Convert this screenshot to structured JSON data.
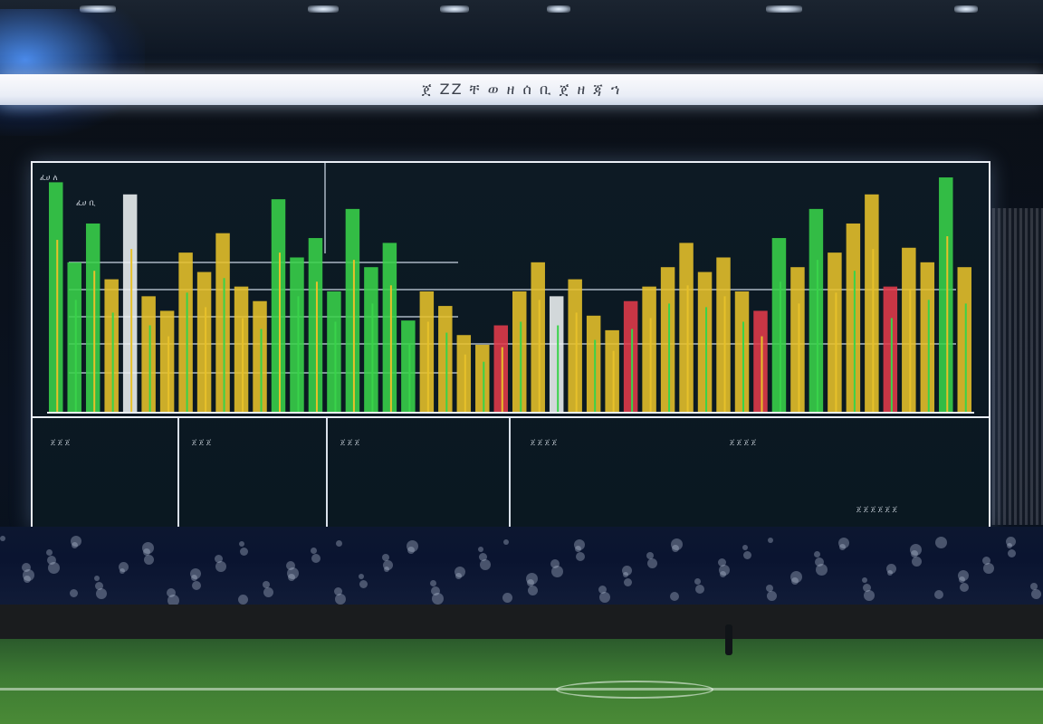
{
  "scene": {
    "description_colors": {
      "field": "#3d7b33",
      "screen_bg": "#0d1a24",
      "frame": "#e9eef5",
      "bar_green": "#39d34a",
      "bar_yellow": "#e7c12a",
      "bar_red": "#e23a4a",
      "bar_white": "#eef2f4"
    }
  },
  "banner": {
    "text": "ጀ ZZ ቸ ወ ዘ ሰ ቢ ጀ ዘ ጃ ኀ"
  },
  "screen": {
    "top_left_labels": [
      "ፈሀ ለ",
      "ፈሀ ቢ"
    ],
    "bottom_labels": [
      "ጀ ጀ ጀ",
      "ጀ ጀ ጀ",
      "ጀ ጀ ጀ",
      "ጀ ጀ ጀ ጀ",
      "ጀ ጀ ጀ ጀ"
    ],
    "bottom_caption": "ጀ ጀ ጀ ጀ ጀ ጀ"
  },
  "chart_data": {
    "type": "bar",
    "series": [
      {
        "values": [
          0.95,
          0.62,
          0.78,
          0.55,
          0.9,
          0.48,
          0.42,
          0.66,
          0.58,
          0.74,
          0.52,
          0.46,
          0.88,
          0.64,
          0.72,
          0.5,
          0.84,
          0.6,
          0.7,
          0.38,
          0.5,
          0.44,
          0.32,
          0.28,
          0.36,
          0.5,
          0.62,
          0.48,
          0.55,
          0.4,
          0.34,
          0.46,
          0.52,
          0.6,
          0.7,
          0.58,
          0.64,
          0.5,
          0.42,
          0.72,
          0.6,
          0.84,
          0.66,
          0.78,
          0.9,
          0.52,
          0.68,
          0.62,
          0.97,
          0.6
        ]
      }
    ]
  }
}
